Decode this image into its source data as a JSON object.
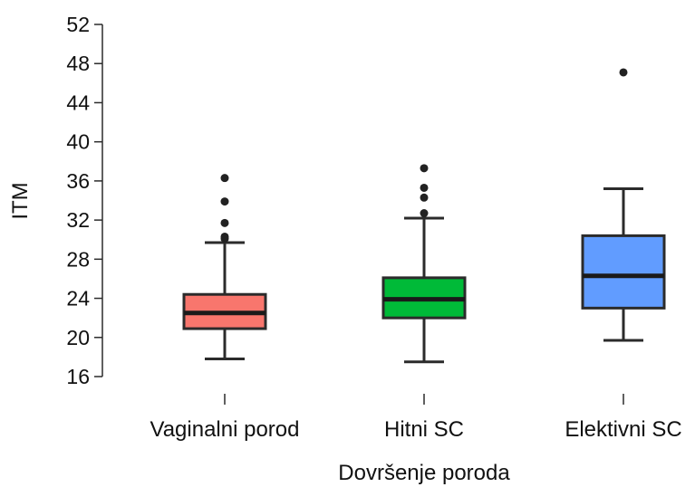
{
  "chart_data": {
    "type": "box",
    "title": "",
    "xlabel": "Dovršenje poroda",
    "ylabel": "ITM",
    "ylim": [
      16,
      52
    ],
    "yticks": [
      16,
      20,
      24,
      28,
      32,
      36,
      40,
      44,
      48,
      52
    ],
    "ytick_labels": [
      "16",
      "20",
      "24",
      "28",
      "32",
      "36",
      "40",
      "44",
      "48",
      "52"
    ],
    "grid": false,
    "legend": "none",
    "categories": [
      "Vaginalni porod",
      "Hitni SC",
      "Elektivni SC"
    ],
    "series": [
      {
        "color": "#F8766D",
        "whisker_low": 17.8,
        "q1": 20.9,
        "median": 22.5,
        "q3": 24.4,
        "whisker_high": 29.7,
        "outliers": [
          30.1,
          30.3,
          31.7,
          33.9,
          36.3
        ]
      },
      {
        "color": "#00BA38",
        "whisker_low": 17.5,
        "q1": 22.0,
        "median": 23.9,
        "q3": 26.1,
        "whisker_high": 32.2,
        "outliers": [
          32.7,
          34.3,
          35.3,
          37.3
        ]
      },
      {
        "color": "#619CFF",
        "whisker_low": 19.7,
        "q1": 23.0,
        "median": 26.3,
        "q3": 30.4,
        "whisker_high": 35.2,
        "outliers": [
          47.1
        ]
      }
    ]
  }
}
